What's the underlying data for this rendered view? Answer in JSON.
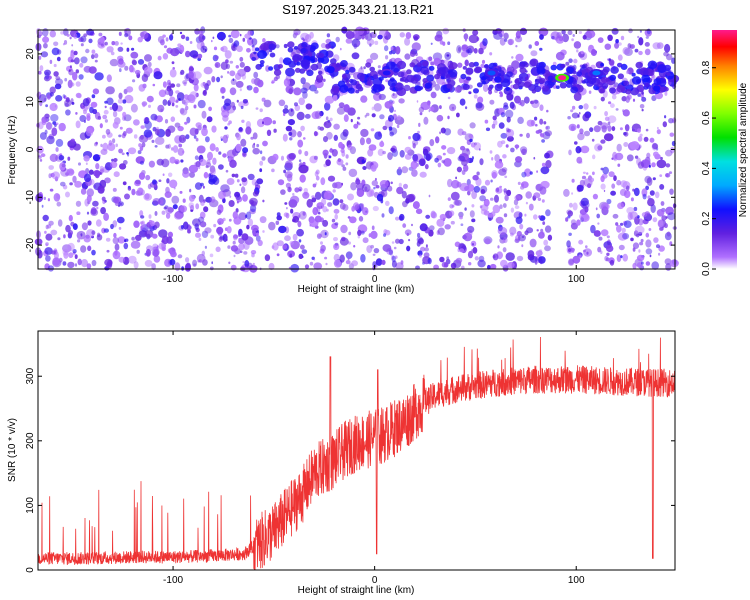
{
  "title": "S197.2025.343.21.13.R21",
  "colors": {
    "snr_line": "#ee3333",
    "spectrogram_base": "#7b2ff0",
    "frame": "#000000"
  },
  "chart_data": [
    {
      "type": "heatmap",
      "xlabel": "Height of straight line (km)",
      "ylabel": "Frequency (Hz)",
      "xlim": [
        -167,
        149
      ],
      "ylim": [
        -25,
        25
      ],
      "xticks": [
        -100,
        0,
        100
      ],
      "xtick_labels": [
        "-100",
        "0",
        "100"
      ],
      "yticks": [
        -20,
        -10,
        0,
        10,
        20
      ],
      "ytick_labels": [
        "-20",
        "-10",
        "0",
        "10",
        "20"
      ],
      "colorbar": {
        "label": "Normalized spectral amplitude",
        "range": [
          0.0,
          0.95
        ],
        "ticks": [
          0.0,
          0.2,
          0.4,
          0.6,
          0.8
        ],
        "tick_labels": [
          "0.0",
          "0.2",
          "0.4",
          "0.6",
          "0.8"
        ],
        "colormap": "rainbow"
      },
      "features": [
        {
          "description_free": true,
          "x": [
            -60,
            149
          ],
          "y": 15,
          "amplitude": 0.25
        },
        {
          "x": 93,
          "y": 15,
          "amplitude": 0.95
        },
        {
          "x": 110,
          "y": 16,
          "amplitude": 0.3
        },
        {
          "x": 58,
          "y": 16,
          "amplitude": 0.28
        },
        {
          "x": 6,
          "y": 16,
          "amplitude": 0.22
        }
      ],
      "grid": false
    },
    {
      "type": "line",
      "xlabel": "Height of straight line (km)",
      "ylabel": "SNR (10 * v/v)",
      "xlim": [
        -167,
        149
      ],
      "ylim": [
        0,
        370
      ],
      "xticks": [
        -100,
        0,
        100
      ],
      "xtick_labels": [
        "-100",
        "0",
        "100"
      ],
      "yticks": [
        0,
        100,
        200,
        300
      ],
      "ytick_labels": [
        "0",
        "100",
        "200",
        "300"
      ],
      "series": [
        {
          "x": [
            -167,
            -140,
            -120,
            -100,
            -80,
            -65,
            -58,
            -50,
            -45,
            -40,
            -35,
            -30,
            -25,
            -20,
            -15,
            -10,
            -5,
            0,
            5,
            10,
            15,
            20,
            25,
            30,
            40,
            60,
            80,
            100,
            120,
            140,
            149
          ],
          "values": [
            18,
            18,
            20,
            20,
            22,
            25,
            40,
            60,
            80,
            100,
            120,
            150,
            160,
            170,
            185,
            195,
            200,
            205,
            210,
            220,
            230,
            245,
            260,
            270,
            280,
            290,
            295,
            295,
            292,
            290,
            290
          ]
        }
      ],
      "grid": false
    }
  ]
}
